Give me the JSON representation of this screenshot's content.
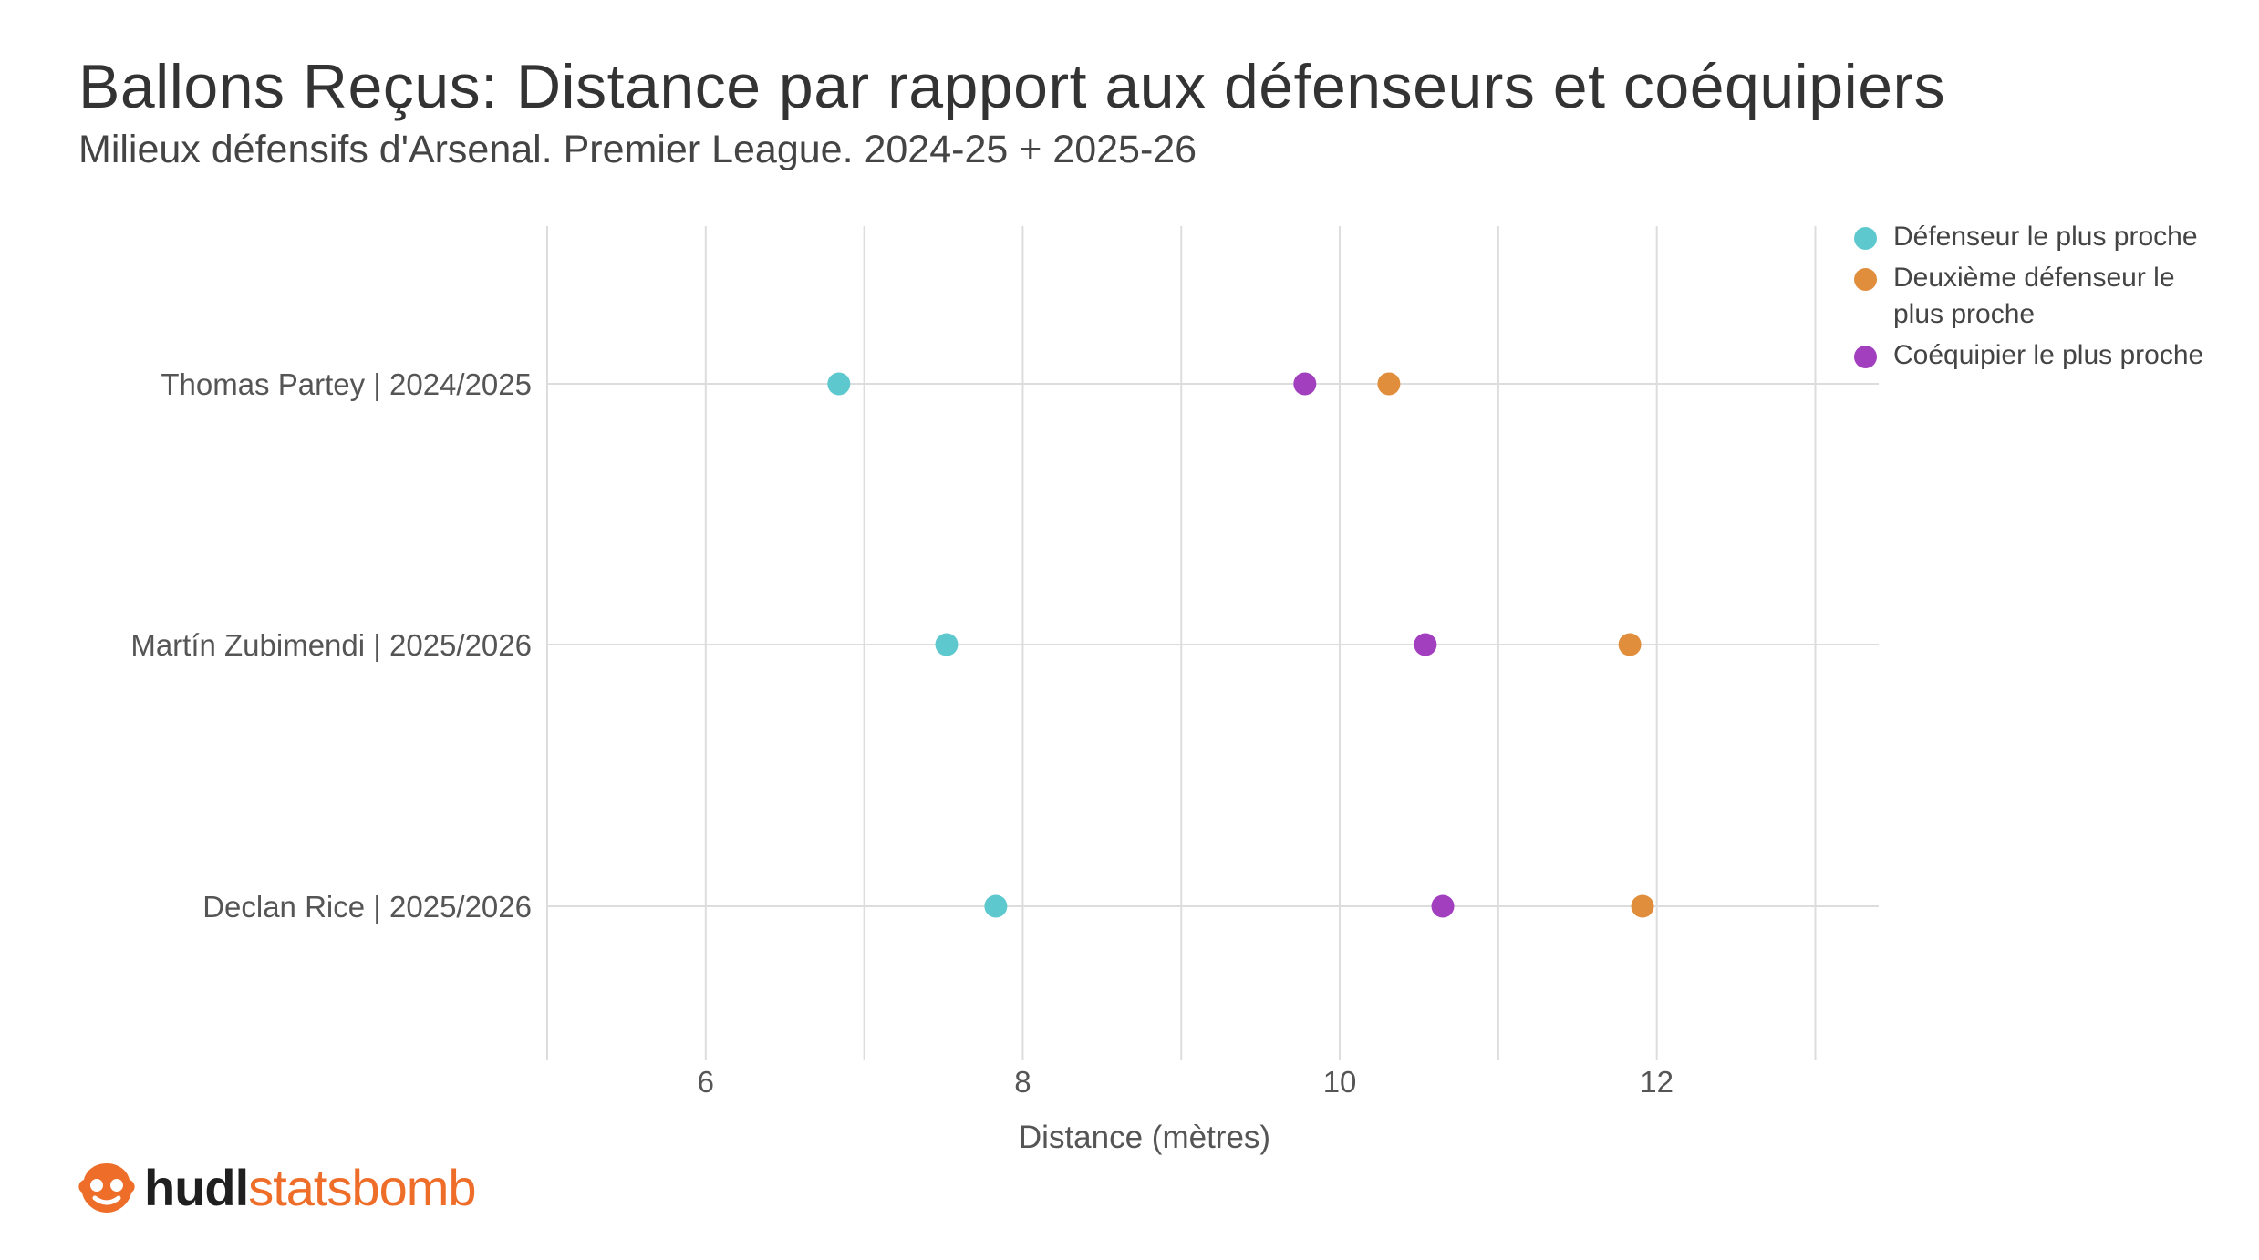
{
  "header": {
    "title": "Ballons Reçus: Distance par rapport aux défenseurs et coéquipiers",
    "subtitle": "Milieux défensifs d'Arsenal. Premier League. 2024-25 + 2025-26"
  },
  "chart_data": {
    "type": "scatter",
    "title": "Ballons Reçus: Distance par rapport aux défenseurs et coéquipiers",
    "subtitle": "Milieux défensifs d'Arsenal. Premier League. 2024-25 + 2025-26",
    "xlabel": "Distance (mètres)",
    "ylabel": "",
    "xlim": [
      5,
      13.4
    ],
    "xticks": [
      6,
      8,
      10,
      12
    ],
    "x_tick_labels": [
      "6",
      "8",
      "10",
      "12"
    ],
    "grid": true,
    "legend_position": "top-right",
    "categories": [
      "Thomas Partey | 2024/2025",
      "Martín Zubimendi | 2025/2026",
      "Declan Rice | 2025/2026"
    ],
    "series": [
      {
        "name": "Défenseur le plus proche",
        "legend_lines": [
          "Défenseur le plus proche"
        ],
        "color": "#5ec8cf",
        "values": [
          6.84,
          7.52,
          7.83
        ]
      },
      {
        "name": "Deuxième défenseur le plus proche",
        "legend_lines": [
          "Deuxième défenseur le",
          "plus proche"
        ],
        "color": "#e08e3c",
        "values": [
          10.31,
          11.83,
          11.91
        ]
      },
      {
        "name": "Coéquipier le plus proche",
        "legend_lines": [
          "Coéquipier le plus proche"
        ],
        "color": "#a13fbf",
        "values": [
          9.78,
          10.54,
          10.65
        ]
      }
    ]
  },
  "branding": {
    "logo_icon": "statsbomb-logo-icon",
    "logo_part1": "hudl",
    "logo_part2": "statsbomb",
    "colors": {
      "hudl": "#1f1f1f",
      "statsbomb": "#ee6d28"
    }
  }
}
